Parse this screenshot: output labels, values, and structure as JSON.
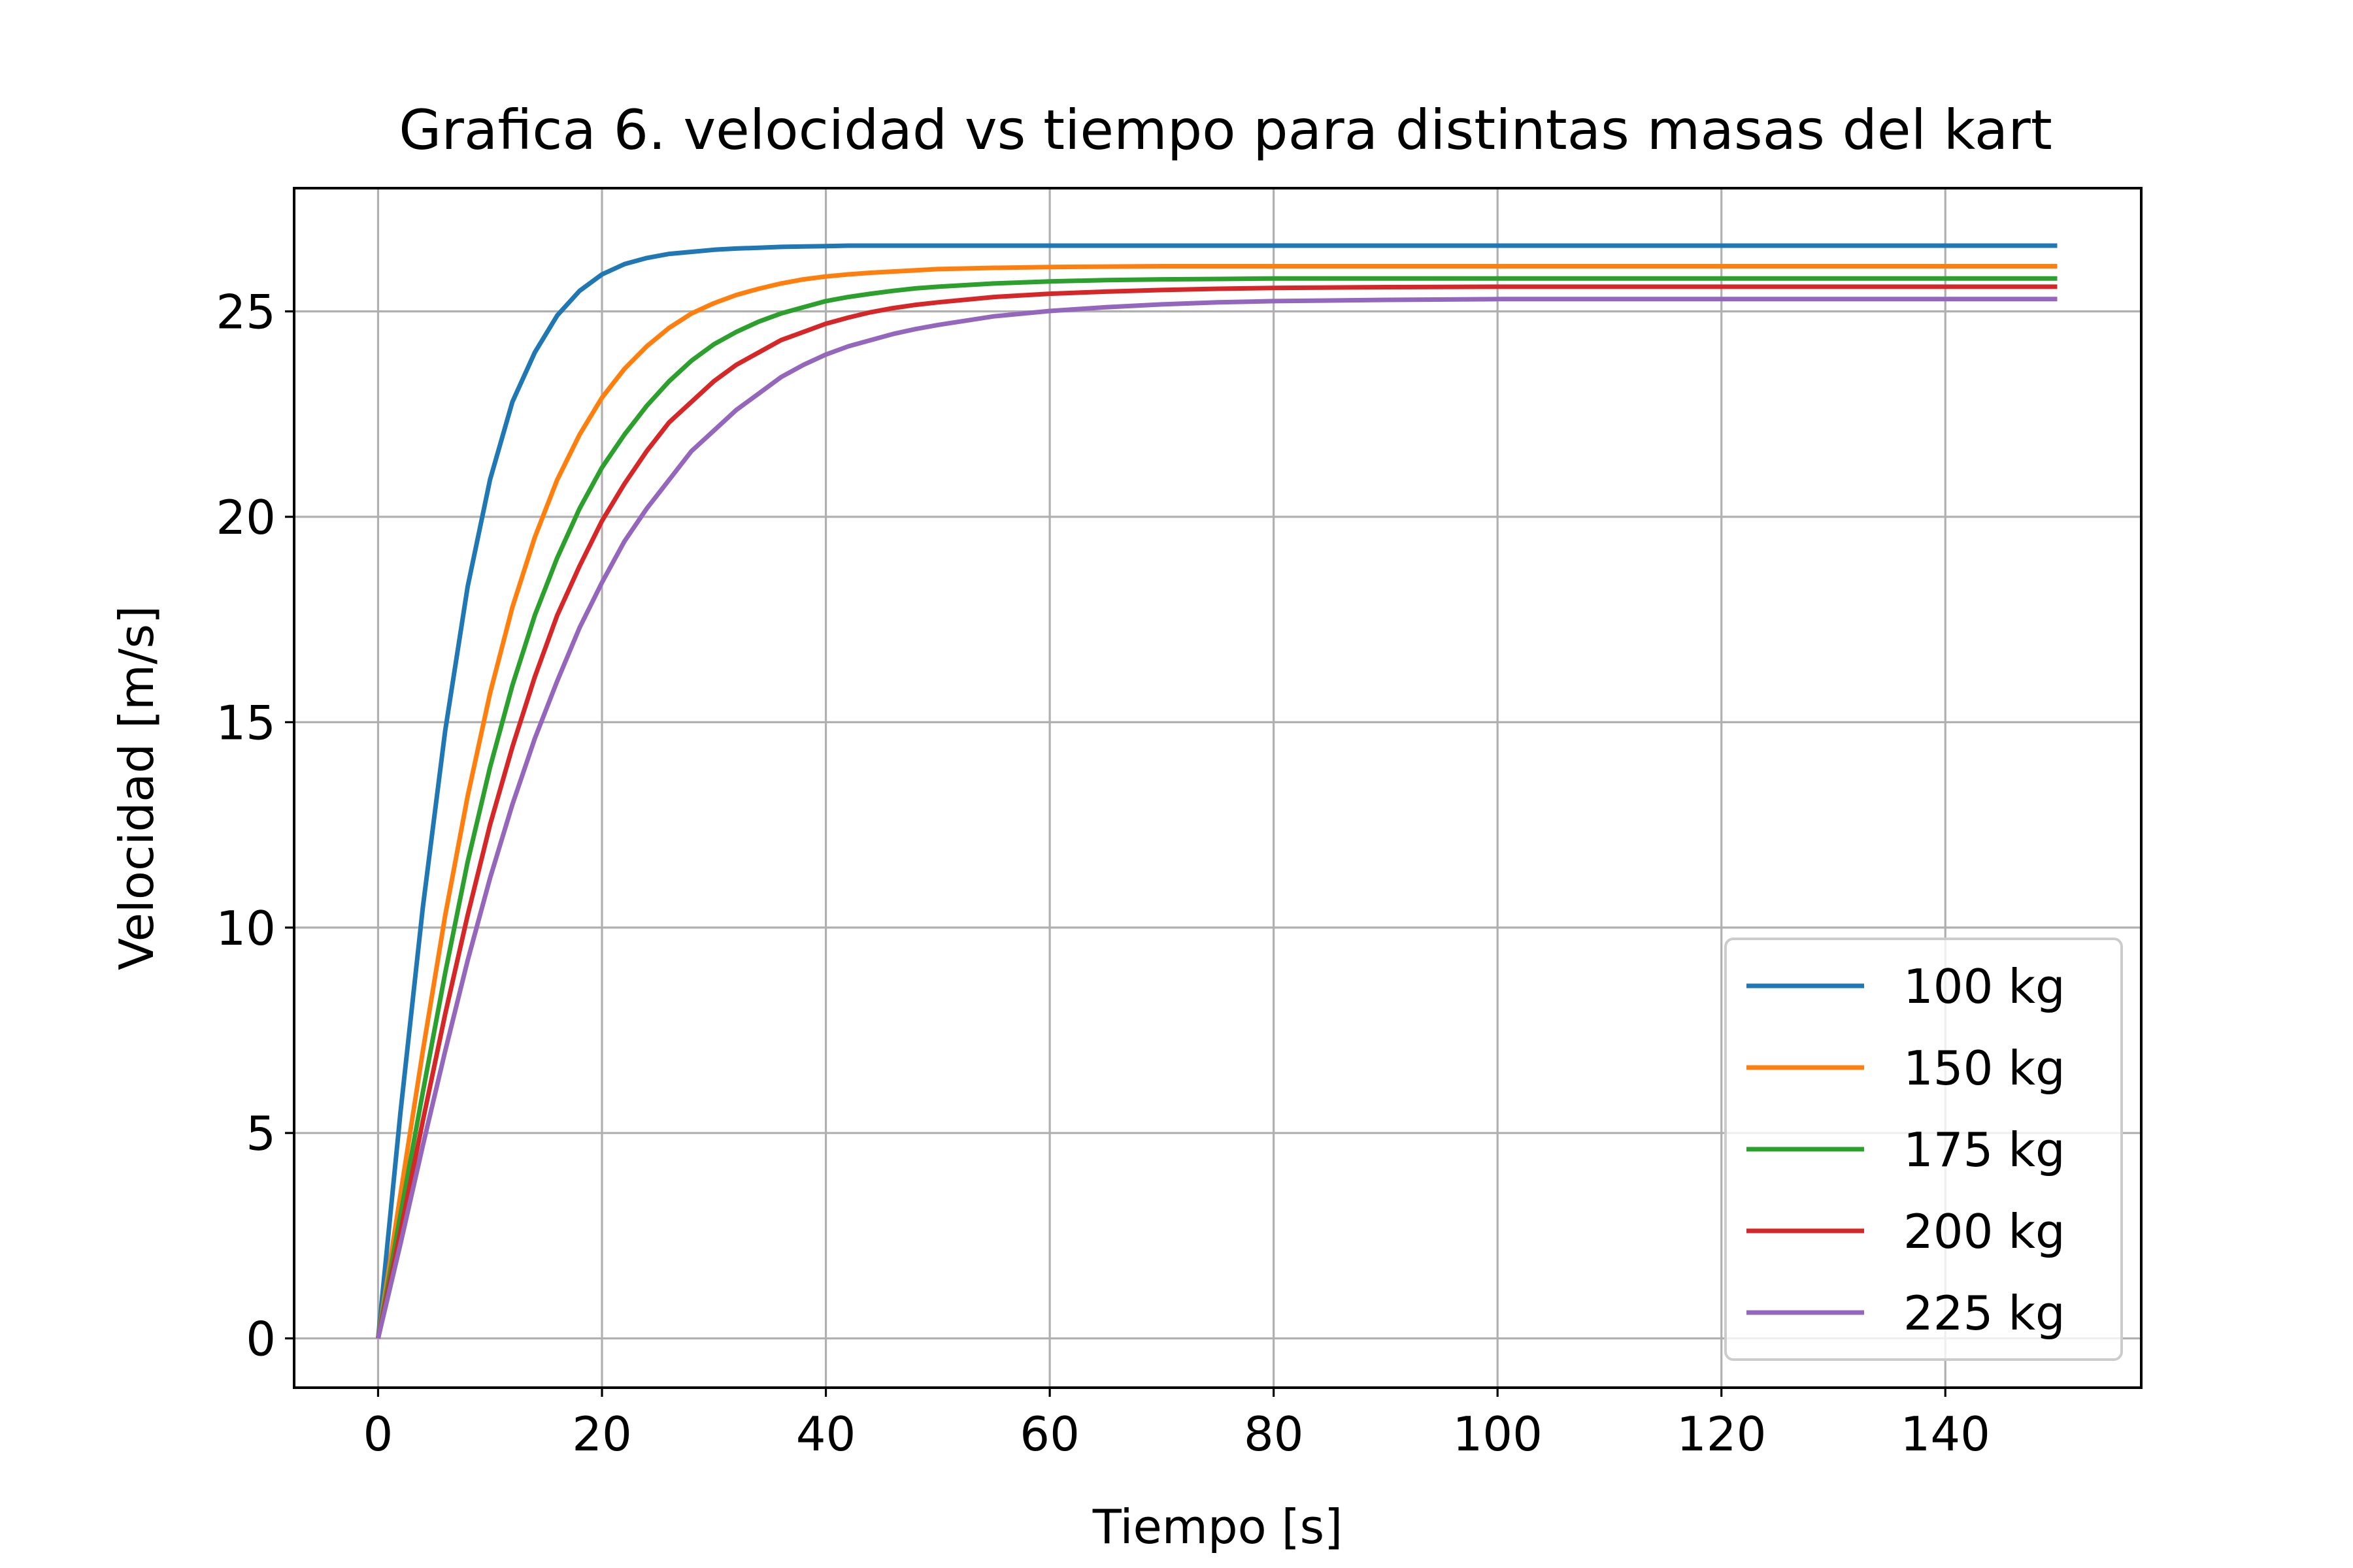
{
  "chart_data": {
    "type": "line",
    "title": "Grafica 6. velocidad vs tiempo para distintas masas del kart",
    "xlabel": "Tiempo  [s]",
    "ylabel": "Velocidad [m/s]",
    "xlim": [
      -7.5,
      157.5
    ],
    "ylim": [
      -1.2,
      28.0
    ],
    "xticks": [
      0,
      20,
      40,
      60,
      80,
      100,
      120,
      140
    ],
    "yticks": [
      0,
      5,
      10,
      15,
      20,
      25
    ],
    "grid": true,
    "legend_position": "lower-right",
    "x": [
      0,
      2,
      4,
      6,
      8,
      10,
      12,
      14,
      16,
      18,
      20,
      22,
      24,
      26,
      28,
      30,
      32,
      34,
      36,
      38,
      40,
      42,
      44,
      46,
      48,
      50,
      55,
      60,
      65,
      70,
      75,
      80,
      90,
      100,
      110,
      120,
      130,
      140,
      150
    ],
    "series": [
      {
        "name": "100 kg",
        "color": "#1f77b4",
        "values": [
          0,
          5.5,
          10.5,
          14.8,
          18.3,
          20.9,
          22.8,
          24.0,
          24.9,
          25.5,
          25.9,
          26.15,
          26.3,
          26.4,
          26.45,
          26.5,
          26.53,
          26.55,
          26.57,
          26.58,
          26.59,
          26.6,
          26.6,
          26.6,
          26.6,
          26.6,
          26.6,
          26.6,
          26.6,
          26.6,
          26.6,
          26.6,
          26.6,
          26.6,
          26.6,
          26.6,
          26.6,
          26.6,
          26.6
        ]
      },
      {
        "name": "150 kg",
        "color": "#ff7f0e",
        "values": [
          0,
          3.5,
          7.0,
          10.3,
          13.2,
          15.7,
          17.8,
          19.5,
          20.9,
          22.0,
          22.9,
          23.6,
          24.15,
          24.6,
          24.95,
          25.2,
          25.4,
          25.55,
          25.68,
          25.78,
          25.85,
          25.9,
          25.94,
          25.97,
          26.0,
          26.03,
          26.06,
          26.08,
          26.09,
          26.1,
          26.1,
          26.1,
          26.1,
          26.1,
          26.1,
          26.1,
          26.1,
          26.1,
          26.1
        ]
      },
      {
        "name": "175 kg",
        "color": "#2ca02c",
        "values": [
          0,
          3.0,
          6.0,
          8.9,
          11.6,
          13.9,
          15.9,
          17.6,
          19.0,
          20.2,
          21.2,
          22.0,
          22.7,
          23.3,
          23.8,
          24.2,
          24.5,
          24.75,
          24.95,
          25.1,
          25.25,
          25.35,
          25.43,
          25.5,
          25.56,
          25.6,
          25.68,
          25.73,
          25.76,
          25.78,
          25.79,
          25.8,
          25.8,
          25.8,
          25.8,
          25.8,
          25.8,
          25.8,
          25.8
        ]
      },
      {
        "name": "200 kg",
        "color": "#d62728",
        "values": [
          0,
          2.6,
          5.3,
          7.9,
          10.3,
          12.5,
          14.4,
          16.1,
          17.6,
          18.8,
          19.9,
          20.8,
          21.6,
          22.3,
          22.8,
          23.3,
          23.7,
          24.0,
          24.3,
          24.5,
          24.7,
          24.85,
          24.98,
          25.08,
          25.16,
          25.22,
          25.35,
          25.43,
          25.48,
          25.52,
          25.55,
          25.57,
          25.59,
          25.6,
          25.6,
          25.6,
          25.6,
          25.6,
          25.6
        ]
      },
      {
        "name": "225 kg",
        "color": "#9467bd",
        "values": [
          0,
          2.3,
          4.7,
          7.0,
          9.2,
          11.2,
          13.0,
          14.6,
          16.0,
          17.3,
          18.4,
          19.4,
          20.2,
          20.9,
          21.6,
          22.1,
          22.6,
          23.0,
          23.4,
          23.7,
          23.95,
          24.15,
          24.3,
          24.45,
          24.57,
          24.67,
          24.88,
          25.01,
          25.1,
          25.17,
          25.22,
          25.25,
          25.28,
          25.3,
          25.3,
          25.3,
          25.3,
          25.3,
          25.3
        ]
      }
    ]
  }
}
